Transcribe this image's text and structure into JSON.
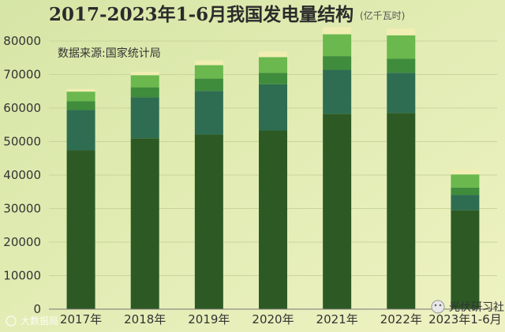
{
  "chart_data": {
    "type": "bar",
    "stacked": true,
    "title": "2017-2023年1-6月我国发电量结构",
    "unit": "(亿千瓦时)",
    "source": "数据来源:国家统计局",
    "categories": [
      "2017年",
      "2018年",
      "2019年",
      "2020年",
      "2021年",
      "2022年",
      "2023年1-6月"
    ],
    "series": [
      {
        "values": [
          47400,
          51000,
          52100,
          53300,
          58300,
          58500,
          29500
        ],
        "color": "#2d5a24"
      },
      {
        "values": [
          12000,
          12200,
          13000,
          13800,
          13100,
          12000,
          4600
        ],
        "color": "#2e6d52"
      },
      {
        "values": [
          2600,
          3000,
          3700,
          3400,
          4100,
          4200,
          2200
        ],
        "color": "#3f8c3c"
      },
      {
        "values": [
          2900,
          3600,
          4000,
          4700,
          6500,
          7000,
          3900
        ],
        "color": "#6ab84e"
      },
      {
        "values": [
          800,
          1000,
          1400,
          1600,
          2100,
          2000,
          1400
        ],
        "color": "#f0eeb2"
      }
    ],
    "yticks": [
      0,
      10000,
      20000,
      30000,
      40000,
      50000,
      60000,
      70000,
      80000
    ],
    "ylim": [
      0,
      84000
    ],
    "grid": true
  },
  "watermark_left": "大数据局",
  "watermark_right": "光伏研习社"
}
